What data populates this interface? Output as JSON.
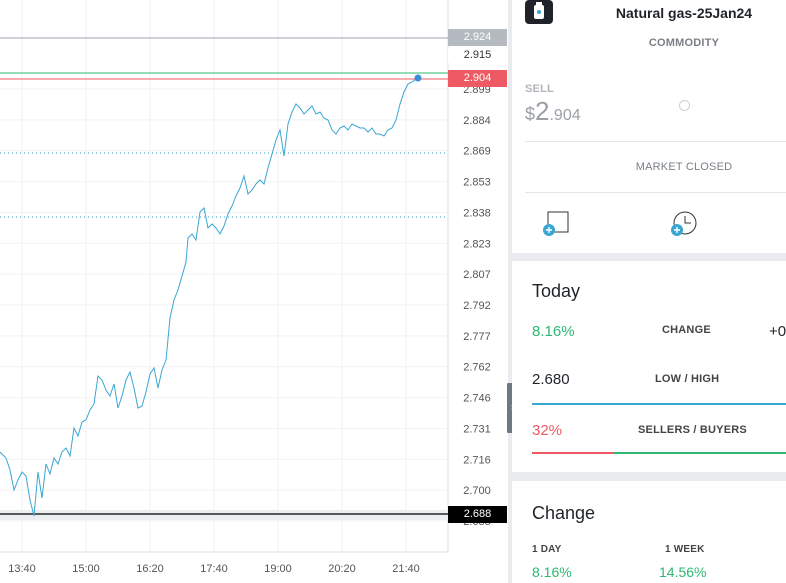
{
  "chart": {
    "price_levels": {
      "high_tag": "2.924",
      "ask_tag": "2.915",
      "current_tag": "2.904",
      "low_tag": "2.688"
    },
    "colors": {
      "line": "#3aa6d3",
      "current": "#ee5a63",
      "ask": "#2eb873",
      "low": "#000000",
      "high": "#9da3ab"
    },
    "y_ticks": [
      "2.899",
      "2.884",
      "2.869",
      "2.853",
      "2.838",
      "2.823",
      "2.807",
      "2.792",
      "2.777",
      "2.762",
      "2.746",
      "2.731",
      "2.716",
      "2.700",
      "2.685"
    ],
    "x_ticks": [
      "13:40",
      "15:00",
      "16:20",
      "17:40",
      "19:00",
      "20:20",
      "21:40"
    ]
  },
  "instrument": {
    "name": "Natural gas-25Jan24",
    "type": "COMMODITY",
    "sell_label": "SELL",
    "currency": "$",
    "price_big": "2",
    "price_small": ".904",
    "status": "MARKET CLOSED",
    "icon": "gas-canister-icon"
  },
  "actions": {
    "order_icon": "add-order-icon",
    "alert_icon": "add-alert-clock-icon"
  },
  "today": {
    "title": "Today",
    "change_pct": "8.16%",
    "change_label": "CHANGE",
    "change_value": "+0",
    "low": "2.680",
    "lowhigh_label": "LOW / HIGH",
    "sellers_pct": "32%",
    "sellers_label": "SELLERS / BUYERS",
    "sellers_fraction": 0.32
  },
  "change": {
    "title": "Change",
    "day_label": "1 DAY",
    "day_value": "8.16%",
    "week_label": "1 WEEK",
    "week_value": "14.56%"
  }
}
